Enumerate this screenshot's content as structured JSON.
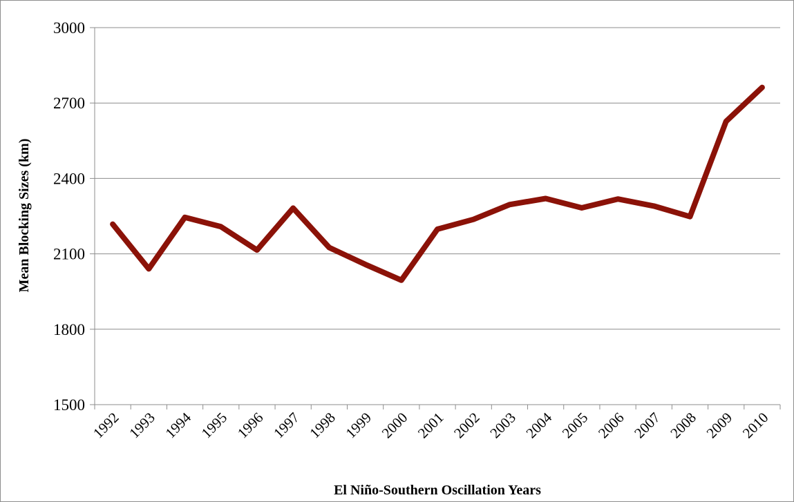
{
  "chart_data": {
    "type": "line",
    "title": "",
    "xlabel": "El Niño-Southern Oscillation Years",
    "ylabel": "Mean Blocking Sizes (km)",
    "ylim": [
      1500,
      3000
    ],
    "yticks": [
      "1500",
      "1800",
      "2100",
      "2400",
      "2700",
      "3000"
    ],
    "categories": [
      "1992",
      "1993",
      "1994",
      "1995",
      "1996",
      "1997",
      "1998",
      "1999",
      "2000",
      "2001",
      "2002",
      "2003",
      "2004",
      "2005",
      "2006",
      "2007",
      "2008",
      "2009",
      "2010"
    ],
    "series": [
      {
        "values": [
          2218,
          2040,
          2245,
          2208,
          2115,
          2282,
          2125,
          2058,
          1995,
          2198,
          2237,
          2296,
          2320,
          2283,
          2318,
          2290,
          2248,
          2627,
          2762
        ],
        "color": "#8b1208"
      }
    ],
    "grid": true,
    "legend": "none"
  }
}
